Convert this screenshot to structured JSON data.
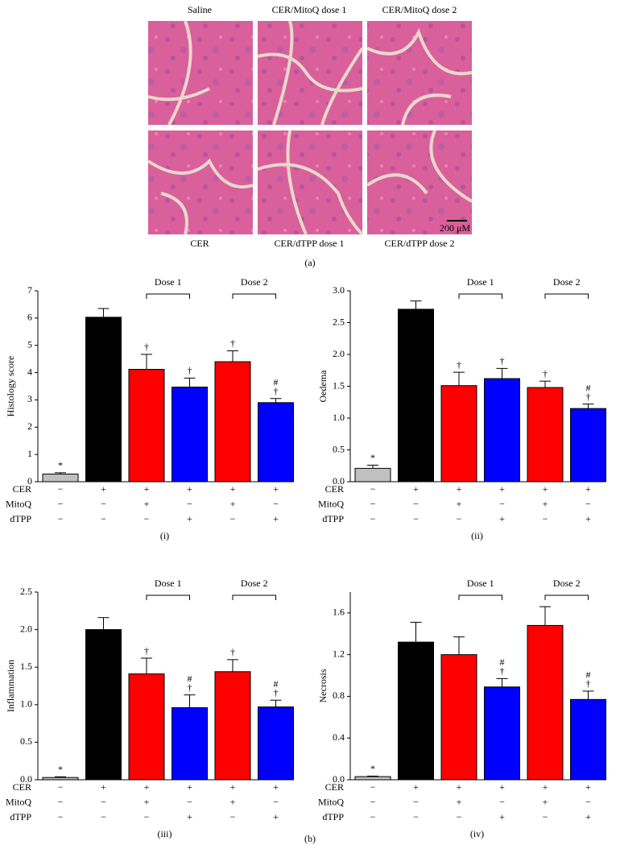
{
  "panel_a": {
    "label": "(a)",
    "images_top": [
      "Saline",
      "CER/MitoQ dose 1",
      "CER/MitoQ dose 2"
    ],
    "images_bottom": [
      "CER",
      "CER/dTPP dose 1",
      "CER/dTPP dose 2"
    ],
    "scale_bar": "200 μM"
  },
  "panel_b_label": "(b)",
  "chart_data": [
    {
      "type": "bar",
      "panel_label": "(i)",
      "ylabel": "Histology score",
      "values": [
        0.28,
        6.03,
        4.12,
        3.47,
        4.4,
        2.9
      ],
      "errors": [
        0.05,
        0.32,
        0.55,
        0.33,
        0.4,
        0.15
      ],
      "colors": [
        "#c0c0c0",
        "#000000",
        "#ff0000",
        "#0000ff",
        "#ff0000",
        "#0000ff"
      ],
      "bar_annotations": [
        [
          "*"
        ],
        [],
        [
          "†"
        ],
        [
          "†"
        ],
        [
          "†"
        ],
        [
          "#",
          "†"
        ]
      ],
      "brackets": [
        "Dose 1",
        "Dose 2"
      ],
      "conditions": [
        {
          "name": "CER",
          "signs": [
            "−",
            "+",
            "+",
            "+",
            "+",
            "+"
          ]
        },
        {
          "name": "MitoQ",
          "signs": [
            "−",
            "−",
            "+",
            "−",
            "+",
            "−"
          ]
        },
        {
          "name": "dTPP",
          "signs": [
            "−",
            "−",
            "−",
            "+",
            "−",
            "+"
          ]
        }
      ],
      "ylim": [
        0,
        7
      ],
      "yticks": [
        0,
        1,
        2,
        3,
        4,
        5,
        6,
        7
      ]
    },
    {
      "type": "bar",
      "panel_label": "(ii)",
      "ylabel": "Oedema",
      "values": [
        0.21,
        2.71,
        1.51,
        1.62,
        1.48,
        1.15
      ],
      "errors": [
        0.05,
        0.13,
        0.21,
        0.16,
        0.1,
        0.07
      ],
      "colors": [
        "#c0c0c0",
        "#000000",
        "#ff0000",
        "#0000ff",
        "#ff0000",
        "#0000ff"
      ],
      "bar_annotations": [
        [
          "*"
        ],
        [],
        [
          "†"
        ],
        [
          "†"
        ],
        [
          "†"
        ],
        [
          "#",
          "†"
        ]
      ],
      "brackets": [
        "Dose 1",
        "Dose 2"
      ],
      "conditions": [
        {
          "name": "CER",
          "signs": [
            "−",
            "+",
            "+",
            "+",
            "+",
            "+"
          ]
        },
        {
          "name": "MitoQ",
          "signs": [
            "−",
            "−",
            "+",
            "−",
            "+",
            "−"
          ]
        },
        {
          "name": "dTPP",
          "signs": [
            "−",
            "−",
            "−",
            "+",
            "−",
            "+"
          ]
        }
      ],
      "ylim": [
        0,
        3
      ],
      "yticks": [
        {
          "value": 0,
          "label": "0.0"
        },
        0.5,
        {
          "value": 1,
          "label": "1.0"
        },
        1.5,
        {
          "value": 2,
          "label": "2.0"
        },
        2.5,
        {
          "value": 3,
          "label": "3.0"
        }
      ]
    },
    {
      "type": "bar",
      "panel_label": "(iii)",
      "ylabel": "Inflammation",
      "values": [
        0.03,
        2.0,
        1.41,
        0.96,
        1.44,
        0.97
      ],
      "errors": [
        0.01,
        0.16,
        0.21,
        0.17,
        0.16,
        0.09
      ],
      "colors": [
        "#c0c0c0",
        "#000000",
        "#ff0000",
        "#0000ff",
        "#ff0000",
        "#0000ff"
      ],
      "bar_annotations": [
        [
          "*"
        ],
        [],
        [
          "†"
        ],
        [
          "#",
          "†"
        ],
        [
          "†"
        ],
        [
          "#",
          "†"
        ]
      ],
      "brackets": [
        "Dose 1",
        "Dose 2"
      ],
      "conditions": [
        {
          "name": "CER",
          "signs": [
            "−",
            "+",
            "+",
            "+",
            "+",
            "+"
          ]
        },
        {
          "name": "MitoQ",
          "signs": [
            "−",
            "−",
            "+",
            "−",
            "+",
            "−"
          ]
        },
        {
          "name": "dTPP",
          "signs": [
            "−",
            "−",
            "−",
            "+",
            "−",
            "+"
          ]
        }
      ],
      "ylim": [
        0,
        2.5
      ],
      "yticks": [
        {
          "value": 0,
          "label": "0.0"
        },
        0.5,
        {
          "value": 1,
          "label": "1.0"
        },
        1.5,
        {
          "value": 2,
          "label": "2.0"
        },
        2.5
      ]
    },
    {
      "type": "bar",
      "panel_label": "(iv)",
      "ylabel": "Necrosis",
      "values": [
        0.03,
        1.32,
        1.2,
        0.89,
        1.48,
        0.77
      ],
      "errors": [
        0.005,
        0.19,
        0.17,
        0.08,
        0.18,
        0.08
      ],
      "colors": [
        "#c0c0c0",
        "#000000",
        "#ff0000",
        "#0000ff",
        "#ff0000",
        "#0000ff"
      ],
      "bar_annotations": [
        [
          "*"
        ],
        [],
        [],
        [
          "#",
          "†"
        ],
        [],
        [
          "#",
          "†"
        ]
      ],
      "brackets": [
        "Dose 1",
        "Dose 2"
      ],
      "conditions": [
        {
          "name": "CER",
          "signs": [
            "−",
            "+",
            "+",
            "+",
            "+",
            "+"
          ]
        },
        {
          "name": "MitoQ",
          "signs": [
            "−",
            "−",
            "+",
            "−",
            "+",
            "−"
          ]
        },
        {
          "name": "dTPP",
          "signs": [
            "−",
            "−",
            "−",
            "+",
            "−",
            "+"
          ]
        }
      ],
      "ylim": [
        0,
        1.8
      ],
      "yticks": [
        {
          "value": 0,
          "label": "0.0"
        },
        0.4,
        0.8,
        1.2,
        1.6
      ]
    }
  ]
}
